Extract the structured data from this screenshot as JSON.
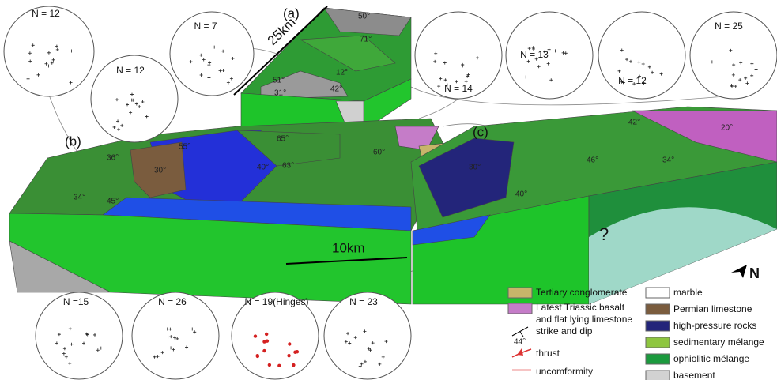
{
  "panels": [
    "(a)",
    "(b)",
    "(c)"
  ],
  "stereonets": [
    {
      "label": "N = 12"
    },
    {
      "label": "N = 12"
    },
    {
      "label": "N = 7"
    },
    {
      "label": "N = 14"
    },
    {
      "label": "N = 13"
    },
    {
      "label": "N = 12"
    },
    {
      "label": "N = 25"
    },
    {
      "label": "N =15"
    },
    {
      "label": "N = 26"
    },
    {
      "label": "N = 19(Hinges)"
    },
    {
      "label": "N = 23"
    }
  ],
  "scale_bars": [
    "25km",
    "10km"
  ],
  "dip_labels": [
    "50°",
    "71°",
    "12°",
    "51°",
    "42°",
    "31°",
    "36°",
    "55°",
    "30°",
    "65°",
    "60°",
    "40°",
    "63°",
    "34°",
    "45°",
    "42°",
    "20°",
    "46°",
    "34°",
    "40°",
    "30°"
  ],
  "unknown": "?",
  "north": "N",
  "legend": {
    "left": [
      {
        "label": "Tertiary conglomerate",
        "color": "#c8b56a"
      },
      {
        "label": [
          "Latest Triassic basalt",
          "and flat lying limestone"
        ],
        "color": "#c57cc8"
      }
    ],
    "symbols": {
      "strike_dip": "strike and dip",
      "strike_dip_example": "44°",
      "thrust": "thrust",
      "unconformity": "uncomformity"
    },
    "right": [
      {
        "label": "marble",
        "color": "#ffffff"
      },
      {
        "label": "Permian limestone",
        "color": "#7a5c3e"
      },
      {
        "label": "high-pressure rocks",
        "color": "#23257a"
      },
      {
        "label": "sedimentary mélange",
        "color": "#8ec63f"
      },
      {
        "label": "ophiolitic mélange",
        "color": "#1b9a3e"
      },
      {
        "label": "basement",
        "color": "#d2d2d2"
      }
    ]
  }
}
